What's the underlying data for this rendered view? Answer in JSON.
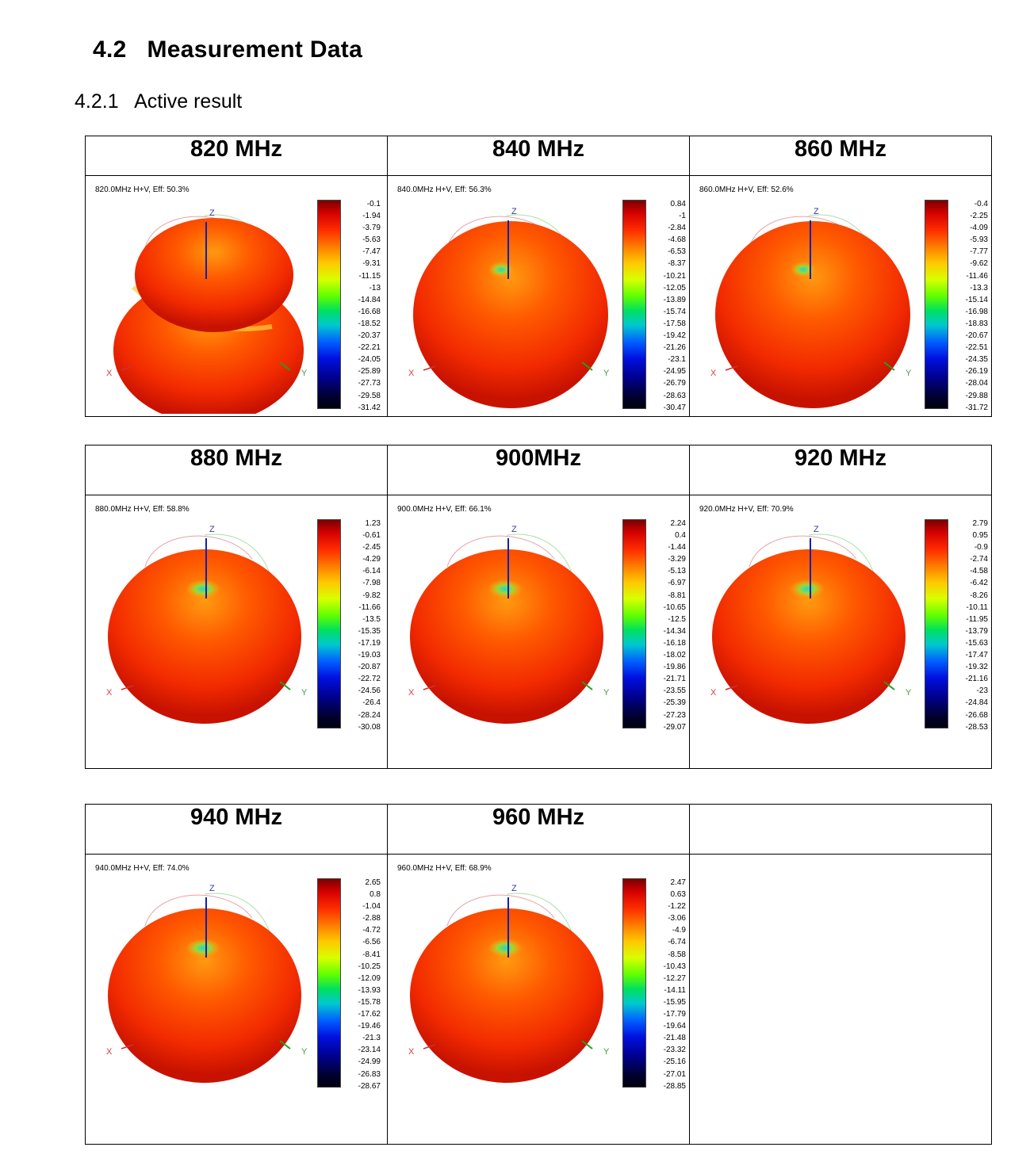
{
  "section": {
    "number": "4.2",
    "title": "Measurement Data"
  },
  "subsection": {
    "number": "4.2.1",
    "title": "Active result"
  },
  "plots": [
    {
      "freq_label": "820 MHz",
      "caption": "820.0MHz H+V, Eff: 50.3%",
      "ticks": [
        "-0.1",
        "-1.94",
        "-3.79",
        "-5.63",
        "-7.47",
        "-9.31",
        "-11.15",
        "-13",
        "-14.84",
        "-16.68",
        "-18.52",
        "-20.37",
        "-22.21",
        "-24.05",
        "-25.89",
        "-27.73",
        "-29.58",
        "-31.42"
      ]
    },
    {
      "freq_label": "840 MHz",
      "caption": "840.0MHz H+V, Eff: 56.3%",
      "ticks": [
        "0.84",
        "-1",
        "-2.84",
        "-4.68",
        "-6.53",
        "-8.37",
        "-10.21",
        "-12.05",
        "-13.89",
        "-15.74",
        "-17.58",
        "-19.42",
        "-21.26",
        "-23.1",
        "-24.95",
        "-26.79",
        "-28.63",
        "-30.47"
      ]
    },
    {
      "freq_label": "860 MHz",
      "caption": "860.0MHz H+V, Eff: 52.6%",
      "ticks": [
        "-0.4",
        "-2.25",
        "-4.09",
        "-5.93",
        "-7.77",
        "-9.62",
        "-11.46",
        "-13.3",
        "-15.14",
        "-16.98",
        "-18.83",
        "-20.67",
        "-22.51",
        "-24.35",
        "-26.19",
        "-28.04",
        "-29.88",
        "-31.72"
      ]
    },
    {
      "freq_label": "880 MHz",
      "caption": "880.0MHz H+V, Eff: 58.8%",
      "ticks": [
        "1.23",
        "-0.61",
        "-2.45",
        "-4.29",
        "-6.14",
        "-7.98",
        "-9.82",
        "-11.66",
        "-13.5",
        "-15.35",
        "-17.19",
        "-19.03",
        "-20.87",
        "-22.72",
        "-24.56",
        "-26.4",
        "-28.24",
        "-30.08"
      ]
    },
    {
      "freq_label": "900MHz",
      "caption": "900.0MHz H+V, Eff: 66.1%",
      "ticks": [
        "2.24",
        "0.4",
        "-1.44",
        "-3.29",
        "-5.13",
        "-6.97",
        "-8.81",
        "-10.65",
        "-12.5",
        "-14.34",
        "-16.18",
        "-18.02",
        "-19.86",
        "-21.71",
        "-23.55",
        "-25.39",
        "-27.23",
        "-29.07"
      ]
    },
    {
      "freq_label": "920 MHz",
      "caption": "920.0MHz H+V, Eff: 70.9%",
      "ticks": [
        "2.79",
        "0.95",
        "-0.9",
        "-2.74",
        "-4.58",
        "-6.42",
        "-8.26",
        "-10.11",
        "-11.95",
        "-13.79",
        "-15.63",
        "-17.47",
        "-19.32",
        "-21.16",
        "-23",
        "-24.84",
        "-26.68",
        "-28.53"
      ]
    },
    {
      "freq_label": "940 MHz",
      "caption": "940.0MHz H+V, Eff: 74.0%",
      "ticks": [
        "2.65",
        "0.8",
        "-1.04",
        "-2.88",
        "-4.72",
        "-6.56",
        "-8.41",
        "-10.25",
        "-12.09",
        "-13.93",
        "-15.78",
        "-17.62",
        "-19.46",
        "-21.3",
        "-23.14",
        "-24.99",
        "-26.83",
        "-28.67"
      ]
    },
    {
      "freq_label": "960 MHz",
      "caption": "960.0MHz H+V, Eff: 68.9%",
      "ticks": [
        "2.47",
        "0.63",
        "-1.22",
        "-3.06",
        "-4.9",
        "-6.74",
        "-8.58",
        "-10.43",
        "-12.27",
        "-14.11",
        "-15.95",
        "-17.79",
        "-19.64",
        "-21.48",
        "-23.32",
        "-25.16",
        "-27.01",
        "-28.85"
      ]
    }
  ],
  "axis_labels": {
    "x": "X",
    "y": "Y",
    "z": "Z"
  }
}
